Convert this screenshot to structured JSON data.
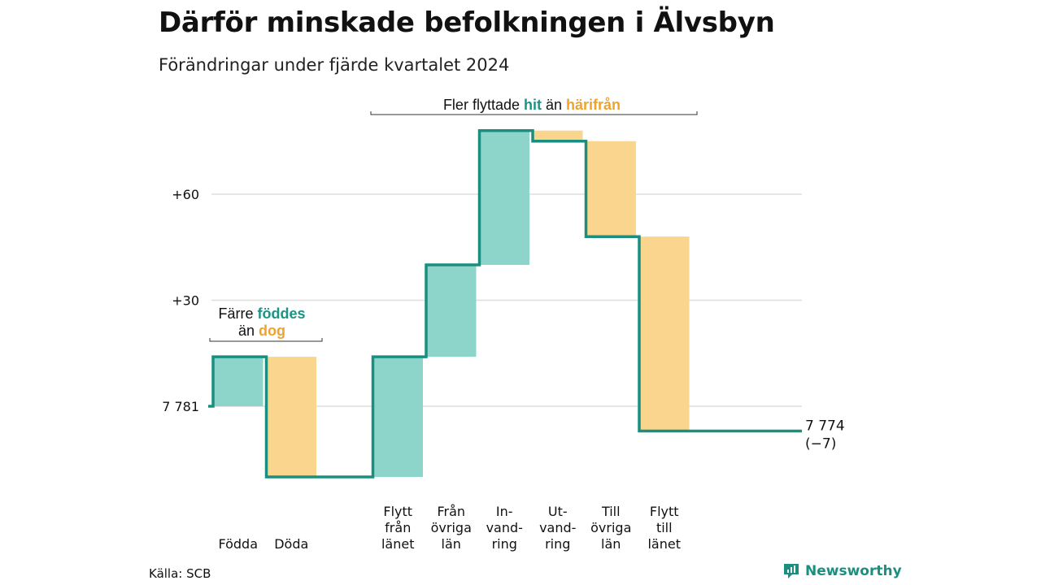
{
  "title": "Därför minskade befolkningen i Älvsbyn",
  "subtitle": "Förändringar under fjärde kvartalet 2024",
  "source": "Källa: SCB",
  "brand": "Newsworthy",
  "colors": {
    "increase": "#8dd5cb",
    "decrease": "#f9d58e",
    "line": "#1a8f7f",
    "hit": "#1a9484",
    "harifran": "#f0a32b",
    "grid": "#dddddd"
  },
  "chart_data": {
    "type": "waterfall",
    "start": 7781,
    "start_label": "7 781",
    "end_label": "7 774",
    "end_change_label": "(−7)",
    "yticks": [
      {
        "value": 30,
        "label": "+30"
      },
      {
        "value": 60,
        "label": "+60"
      }
    ],
    "ylim": [
      -22,
      82
    ],
    "steps": [
      {
        "label": [
          "Födda"
        ],
        "change": 14
      },
      {
        "label": [
          "Döda"
        ],
        "change": -34
      },
      {
        "label": [
          ""
        ],
        "change": 0
      },
      {
        "label": [
          "Flytt",
          "från",
          "länet"
        ],
        "change": 34
      },
      {
        "label": [
          "Från",
          "övriga",
          "län"
        ],
        "change": 26
      },
      {
        "label": [
          "In-",
          "vand-",
          "ring"
        ],
        "change": 38
      },
      {
        "label": [
          "Ut-",
          "vand-",
          "ring"
        ],
        "change": -3
      },
      {
        "label": [
          "Till",
          "övriga",
          "län"
        ],
        "change": -27
      },
      {
        "label": [
          "Flytt",
          "till",
          "länet"
        ],
        "change": -55
      }
    ],
    "annotations": [
      {
        "parts": [
          [
            "Färre ",
            ""
          ],
          [
            "föddes",
            "hit"
          ]
        ],
        "parts2": [
          [
            "än ",
            ""
          ],
          [
            "dog",
            "harifran"
          ]
        ]
      },
      {
        "parts": [
          [
            "Fler flyttade ",
            ""
          ],
          [
            "hit",
            "hit"
          ],
          [
            " än ",
            ""
          ],
          [
            "härifrån",
            "harifran"
          ]
        ]
      }
    ]
  }
}
